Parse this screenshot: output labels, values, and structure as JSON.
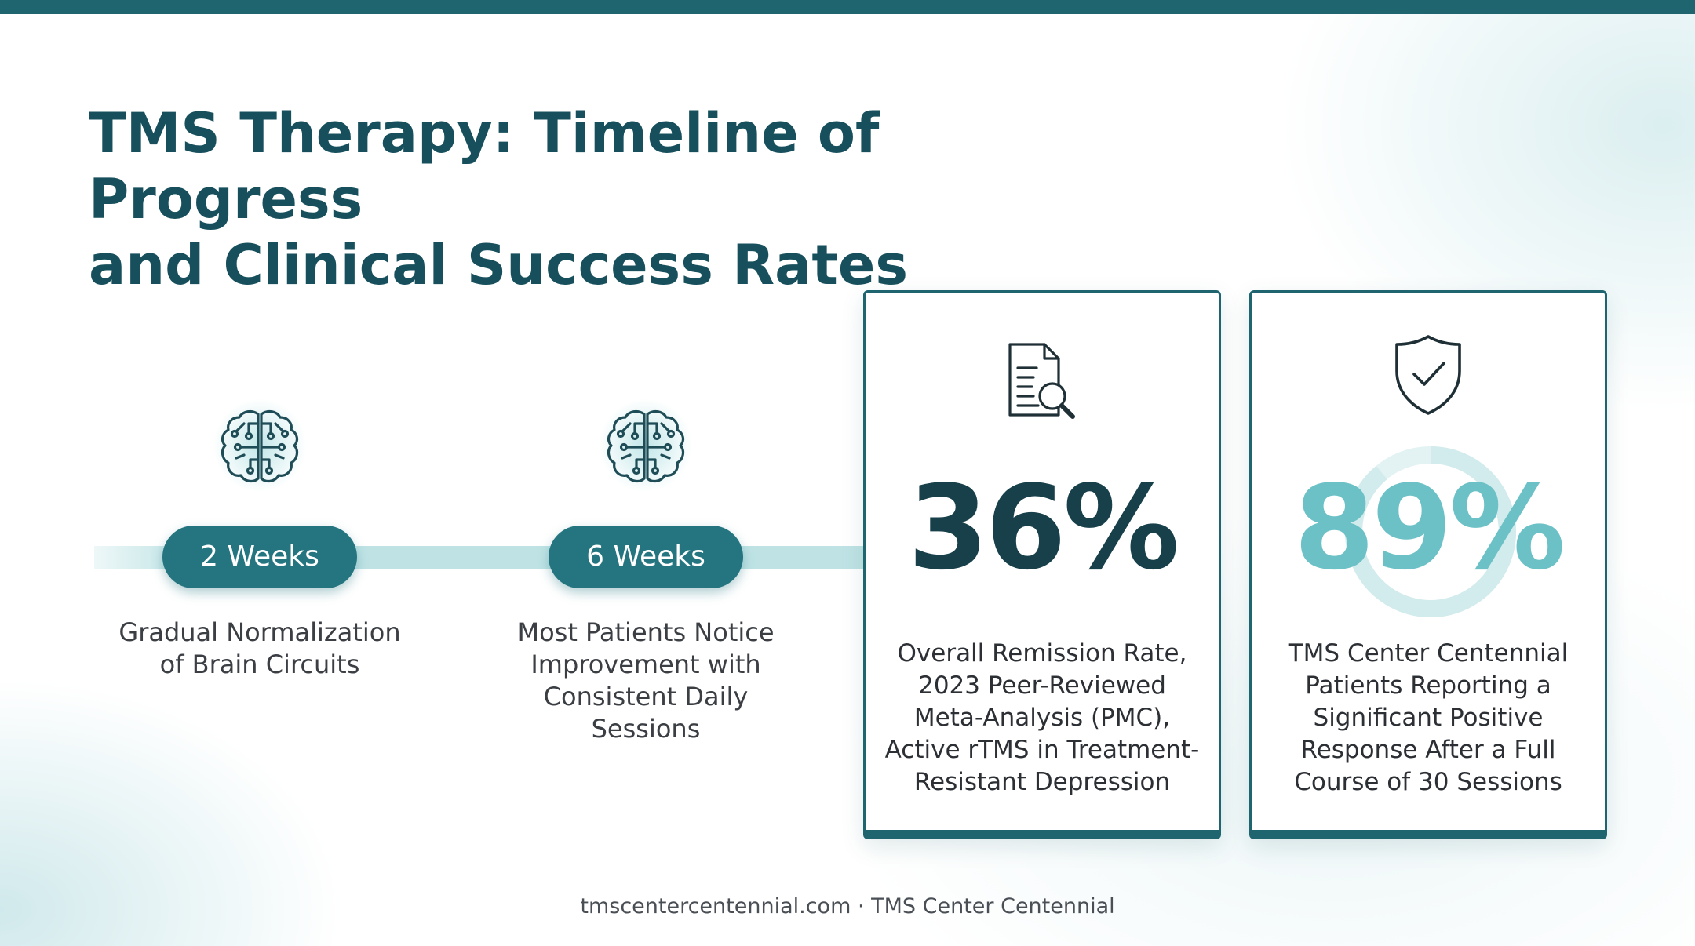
{
  "header": {
    "title": "TMS Therapy: Timeline of Progress\nand Clinical Success Rates"
  },
  "timeline": [
    {
      "icon": "brain-circuit-icon",
      "label": "2 Weeks",
      "description": "Gradual Normalization\nof Brain Circuits"
    },
    {
      "icon": "brain-circuit-icon",
      "label": "6 Weeks",
      "description": "Most Patients Notice\nImprovement with\nConsistent Daily\nSessions"
    }
  ],
  "stats": [
    {
      "icon": "document-search-icon",
      "value": "36%",
      "description": "Overall Remission Rate,\n2023 Peer-Reviewed\nMeta-Analysis (PMC),\nActive rTMS in Treatment-\nResistant Depression"
    },
    {
      "icon": "shield-check-icon",
      "value": "89%",
      "description": "TMS Center Centennial\nPatients Reporting a\nSignificant Positive\nResponse After a Full\nCourse of 30 Sessions"
    }
  ],
  "footer": {
    "text": "tmscentercentennial.com · TMS Center Centennial"
  },
  "colors": {
    "primary": "#1e6570",
    "title": "#17505c",
    "accent_light": "#6cc1c7",
    "track": "#bfe3e5"
  }
}
